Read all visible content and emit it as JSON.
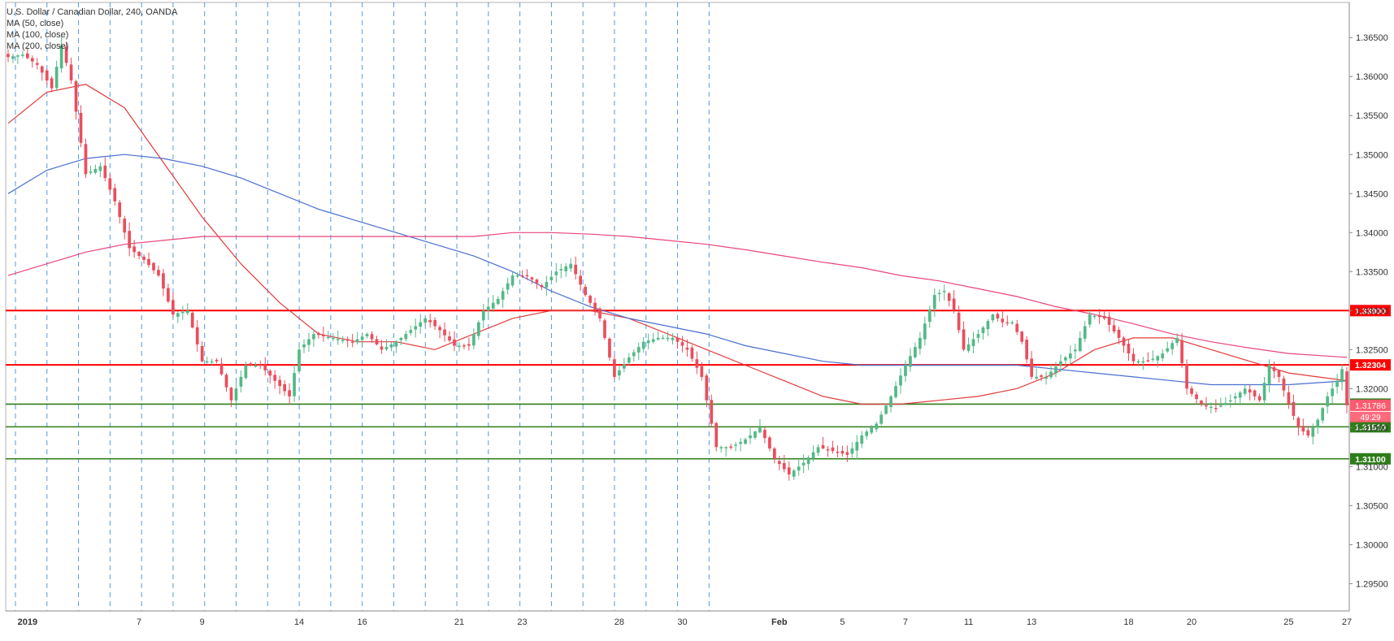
{
  "header": {
    "title": "U.S. Dollar / Canadian Dollar, 240, OANDA",
    "ma_labels": [
      "MA (50, close)",
      "MA (100, close)",
      "MA (200, close)"
    ]
  },
  "colors": {
    "up": "#53b987",
    "down": "#eb4d5c",
    "ma50": "#e23b3b",
    "ma100": "#4a6fcf",
    "ma200": "#e8457a",
    "resistance": "#ff0000",
    "support": "#2e7d1a",
    "grid": "#1e78d2",
    "last_price": "#ff5a6e"
  },
  "chart_data": {
    "type": "candlestick",
    "title": "U.S. Dollar / Canadian Dollar, 240, OANDA",
    "ylim": [
      1.2915,
      1.3695
    ],
    "y_ticks": [
      "1.36500",
      "1.36000",
      "1.35500",
      "1.35000",
      "1.34500",
      "1.34000",
      "1.33500",
      "1.33000",
      "1.32500",
      "1.32000",
      "1.31500",
      "1.31000",
      "1.30500",
      "1.30000",
      "1.29500"
    ],
    "x_labels": [
      "2019",
      "7",
      "9",
      "14",
      "16",
      "21",
      "23",
      "28",
      "30",
      "Feb",
      "5",
      "7",
      "11",
      "13",
      "18",
      "20",
      "25",
      "27"
    ],
    "x_label_session": [
      4,
      27,
      40,
      60,
      73,
      93,
      106,
      126,
      139,
      159,
      172,
      185,
      198,
      211,
      231,
      244,
      264,
      276
    ],
    "horizontal_levels": [
      {
        "value": 1.33,
        "label": "1.33000",
        "kind": "resistance"
      },
      {
        "value": 1.32304,
        "label": "1.32304",
        "kind": "resistance"
      },
      {
        "value": 1.31801,
        "label": "1.31801",
        "kind": "support"
      },
      {
        "value": 1.3151,
        "label": "1.31510",
        "kind": "support"
      },
      {
        "value": 1.311,
        "label": "1.31100",
        "kind": "support"
      }
    ],
    "last_price": {
      "value": 1.31786,
      "label": "1.31786",
      "countdown": "49:29"
    },
    "series_anchor_closes": [
      [
        0,
        1.3625
      ],
      [
        3,
        1.3628
      ],
      [
        6,
        1.3615
      ],
      [
        9,
        1.3585
      ],
      [
        11,
        1.364
      ],
      [
        13,
        1.3595
      ],
      [
        16,
        1.3475
      ],
      [
        19,
        1.3485
      ],
      [
        22,
        1.344
      ],
      [
        25,
        1.338
      ],
      [
        28,
        1.3365
      ],
      [
        31,
        1.3345
      ],
      [
        34,
        1.3295
      ],
      [
        37,
        1.33
      ],
      [
        40,
        1.3235
      ],
      [
        43,
        1.3235
      ],
      [
        46,
        1.3185
      ],
      [
        49,
        1.323
      ],
      [
        52,
        1.323
      ],
      [
        55,
        1.321
      ],
      [
        58,
        1.319
      ],
      [
        60,
        1.325
      ],
      [
        63,
        1.327
      ],
      [
        67,
        1.3265
      ],
      [
        71,
        1.326
      ],
      [
        74,
        1.327
      ],
      [
        77,
        1.325
      ],
      [
        80,
        1.326
      ],
      [
        83,
        1.3275
      ],
      [
        86,
        1.329
      ],
      [
        89,
        1.3275
      ],
      [
        92,
        1.3255
      ],
      [
        95,
        1.3255
      ],
      [
        98,
        1.33
      ],
      [
        101,
        1.3315
      ],
      [
        104,
        1.3345
      ],
      [
        107,
        1.3345
      ],
      [
        110,
        1.333
      ],
      [
        113,
        1.335
      ],
      [
        116,
        1.336
      ],
      [
        119,
        1.332
      ],
      [
        122,
        1.329
      ],
      [
        125,
        1.3215
      ],
      [
        128,
        1.324
      ],
      [
        131,
        1.326
      ],
      [
        134,
        1.3265
      ],
      [
        137,
        1.3265
      ],
      [
        140,
        1.325
      ],
      [
        143,
        1.3215
      ],
      [
        146,
        1.3125
      ],
      [
        149,
        1.3125
      ],
      [
        152,
        1.3135
      ],
      [
        155,
        1.315
      ],
      [
        158,
        1.311
      ],
      [
        161,
        1.309
      ],
      [
        164,
        1.3105
      ],
      [
        167,
        1.3125
      ],
      [
        170,
        1.312
      ],
      [
        173,
        1.3115
      ],
      [
        176,
        1.314
      ],
      [
        179,
        1.3155
      ],
      [
        182,
        1.319
      ],
      [
        185,
        1.323
      ],
      [
        188,
        1.3265
      ],
      [
        191,
        1.332
      ],
      [
        193,
        1.3325
      ],
      [
        195,
        1.33
      ],
      [
        197,
        1.325
      ],
      [
        200,
        1.327
      ],
      [
        203,
        1.3295
      ],
      [
        205,
        1.3285
      ],
      [
        207,
        1.3285
      ],
      [
        209,
        1.326
      ],
      [
        211,
        1.3215
      ],
      [
        214,
        1.3215
      ],
      [
        217,
        1.3235
      ],
      [
        220,
        1.325
      ],
      [
        223,
        1.3295
      ],
      [
        226,
        1.329
      ],
      [
        229,
        1.3265
      ],
      [
        232,
        1.3235
      ],
      [
        235,
        1.3235
      ],
      [
        238,
        1.3245
      ],
      [
        241,
        1.3265
      ],
      [
        243,
        1.32
      ],
      [
        246,
        1.318
      ],
      [
        249,
        1.3175
      ],
      [
        252,
        1.3185
      ],
      [
        255,
        1.32
      ],
      [
        258,
        1.3185
      ],
      [
        260,
        1.323
      ],
      [
        262,
        1.3215
      ],
      [
        264,
        1.318
      ],
      [
        266,
        1.315
      ],
      [
        268,
        1.314
      ],
      [
        270,
        1.316
      ],
      [
        272,
        1.319
      ],
      [
        274,
        1.321
      ],
      [
        275,
        1.3225
      ],
      [
        276,
        1.31786
      ]
    ],
    "ma50_points": [
      [
        0,
        1.354
      ],
      [
        8,
        1.358
      ],
      [
        16,
        1.359
      ],
      [
        24,
        1.356
      ],
      [
        32,
        1.349
      ],
      [
        40,
        1.342
      ],
      [
        48,
        1.336
      ],
      [
        56,
        1.331
      ],
      [
        64,
        1.327
      ],
      [
        72,
        1.326
      ],
      [
        80,
        1.326
      ],
      [
        88,
        1.325
      ],
      [
        96,
        1.327
      ],
      [
        104,
        1.329
      ],
      [
        112,
        1.33
      ],
      [
        120,
        1.33
      ],
      [
        128,
        1.329
      ],
      [
        136,
        1.327
      ],
      [
        144,
        1.325
      ],
      [
        152,
        1.323
      ],
      [
        160,
        1.321
      ],
      [
        168,
        1.319
      ],
      [
        176,
        1.318
      ],
      [
        184,
        1.318
      ],
      [
        192,
        1.3185
      ],
      [
        200,
        1.319
      ],
      [
        208,
        1.32
      ],
      [
        216,
        1.322
      ],
      [
        224,
        1.325
      ],
      [
        232,
        1.3265
      ],
      [
        240,
        1.3265
      ],
      [
        248,
        1.325
      ],
      [
        256,
        1.3235
      ],
      [
        264,
        1.322
      ],
      [
        276,
        1.321
      ]
    ],
    "ma100_points": [
      [
        0,
        1.345
      ],
      [
        8,
        1.348
      ],
      [
        16,
        1.3495
      ],
      [
        24,
        1.35
      ],
      [
        32,
        1.3495
      ],
      [
        40,
        1.3485
      ],
      [
        48,
        1.347
      ],
      [
        56,
        1.345
      ],
      [
        64,
        1.343
      ],
      [
        72,
        1.3415
      ],
      [
        80,
        1.34
      ],
      [
        88,
        1.3385
      ],
      [
        96,
        1.337
      ],
      [
        104,
        1.335
      ],
      [
        112,
        1.3325
      ],
      [
        120,
        1.3305
      ],
      [
        128,
        1.329
      ],
      [
        136,
        1.328
      ],
      [
        144,
        1.327
      ],
      [
        152,
        1.3255
      ],
      [
        160,
        1.3245
      ],
      [
        168,
        1.3235
      ],
      [
        176,
        1.323
      ],
      [
        184,
        1.323
      ],
      [
        192,
        1.323
      ],
      [
        200,
        1.323
      ],
      [
        208,
        1.323
      ],
      [
        216,
        1.3225
      ],
      [
        224,
        1.322
      ],
      [
        232,
        1.3215
      ],
      [
        240,
        1.321
      ],
      [
        248,
        1.3205
      ],
      [
        256,
        1.3205
      ],
      [
        264,
        1.3205
      ],
      [
        276,
        1.321
      ]
    ],
    "ma200_points": [
      [
        0,
        1.3345
      ],
      [
        8,
        1.336
      ],
      [
        16,
        1.3375
      ],
      [
        24,
        1.3385
      ],
      [
        32,
        1.339
      ],
      [
        40,
        1.3395
      ],
      [
        48,
        1.3395
      ],
      [
        56,
        1.3395
      ],
      [
        64,
        1.3395
      ],
      [
        72,
        1.3395
      ],
      [
        80,
        1.3395
      ],
      [
        88,
        1.3395
      ],
      [
        96,
        1.3395
      ],
      [
        104,
        1.34
      ],
      [
        112,
        1.34
      ],
      [
        120,
        1.3398
      ],
      [
        128,
        1.3395
      ],
      [
        136,
        1.339
      ],
      [
        144,
        1.3385
      ],
      [
        152,
        1.3378
      ],
      [
        160,
        1.337
      ],
      [
        168,
        1.3362
      ],
      [
        176,
        1.3355
      ],
      [
        184,
        1.3345
      ],
      [
        192,
        1.3338
      ],
      [
        200,
        1.3328
      ],
      [
        208,
        1.3318
      ],
      [
        216,
        1.3305
      ],
      [
        224,
        1.3295
      ],
      [
        232,
        1.3283
      ],
      [
        240,
        1.327
      ],
      [
        248,
        1.326
      ],
      [
        256,
        1.3252
      ],
      [
        264,
        1.3245
      ],
      [
        276,
        1.324
      ]
    ]
  }
}
